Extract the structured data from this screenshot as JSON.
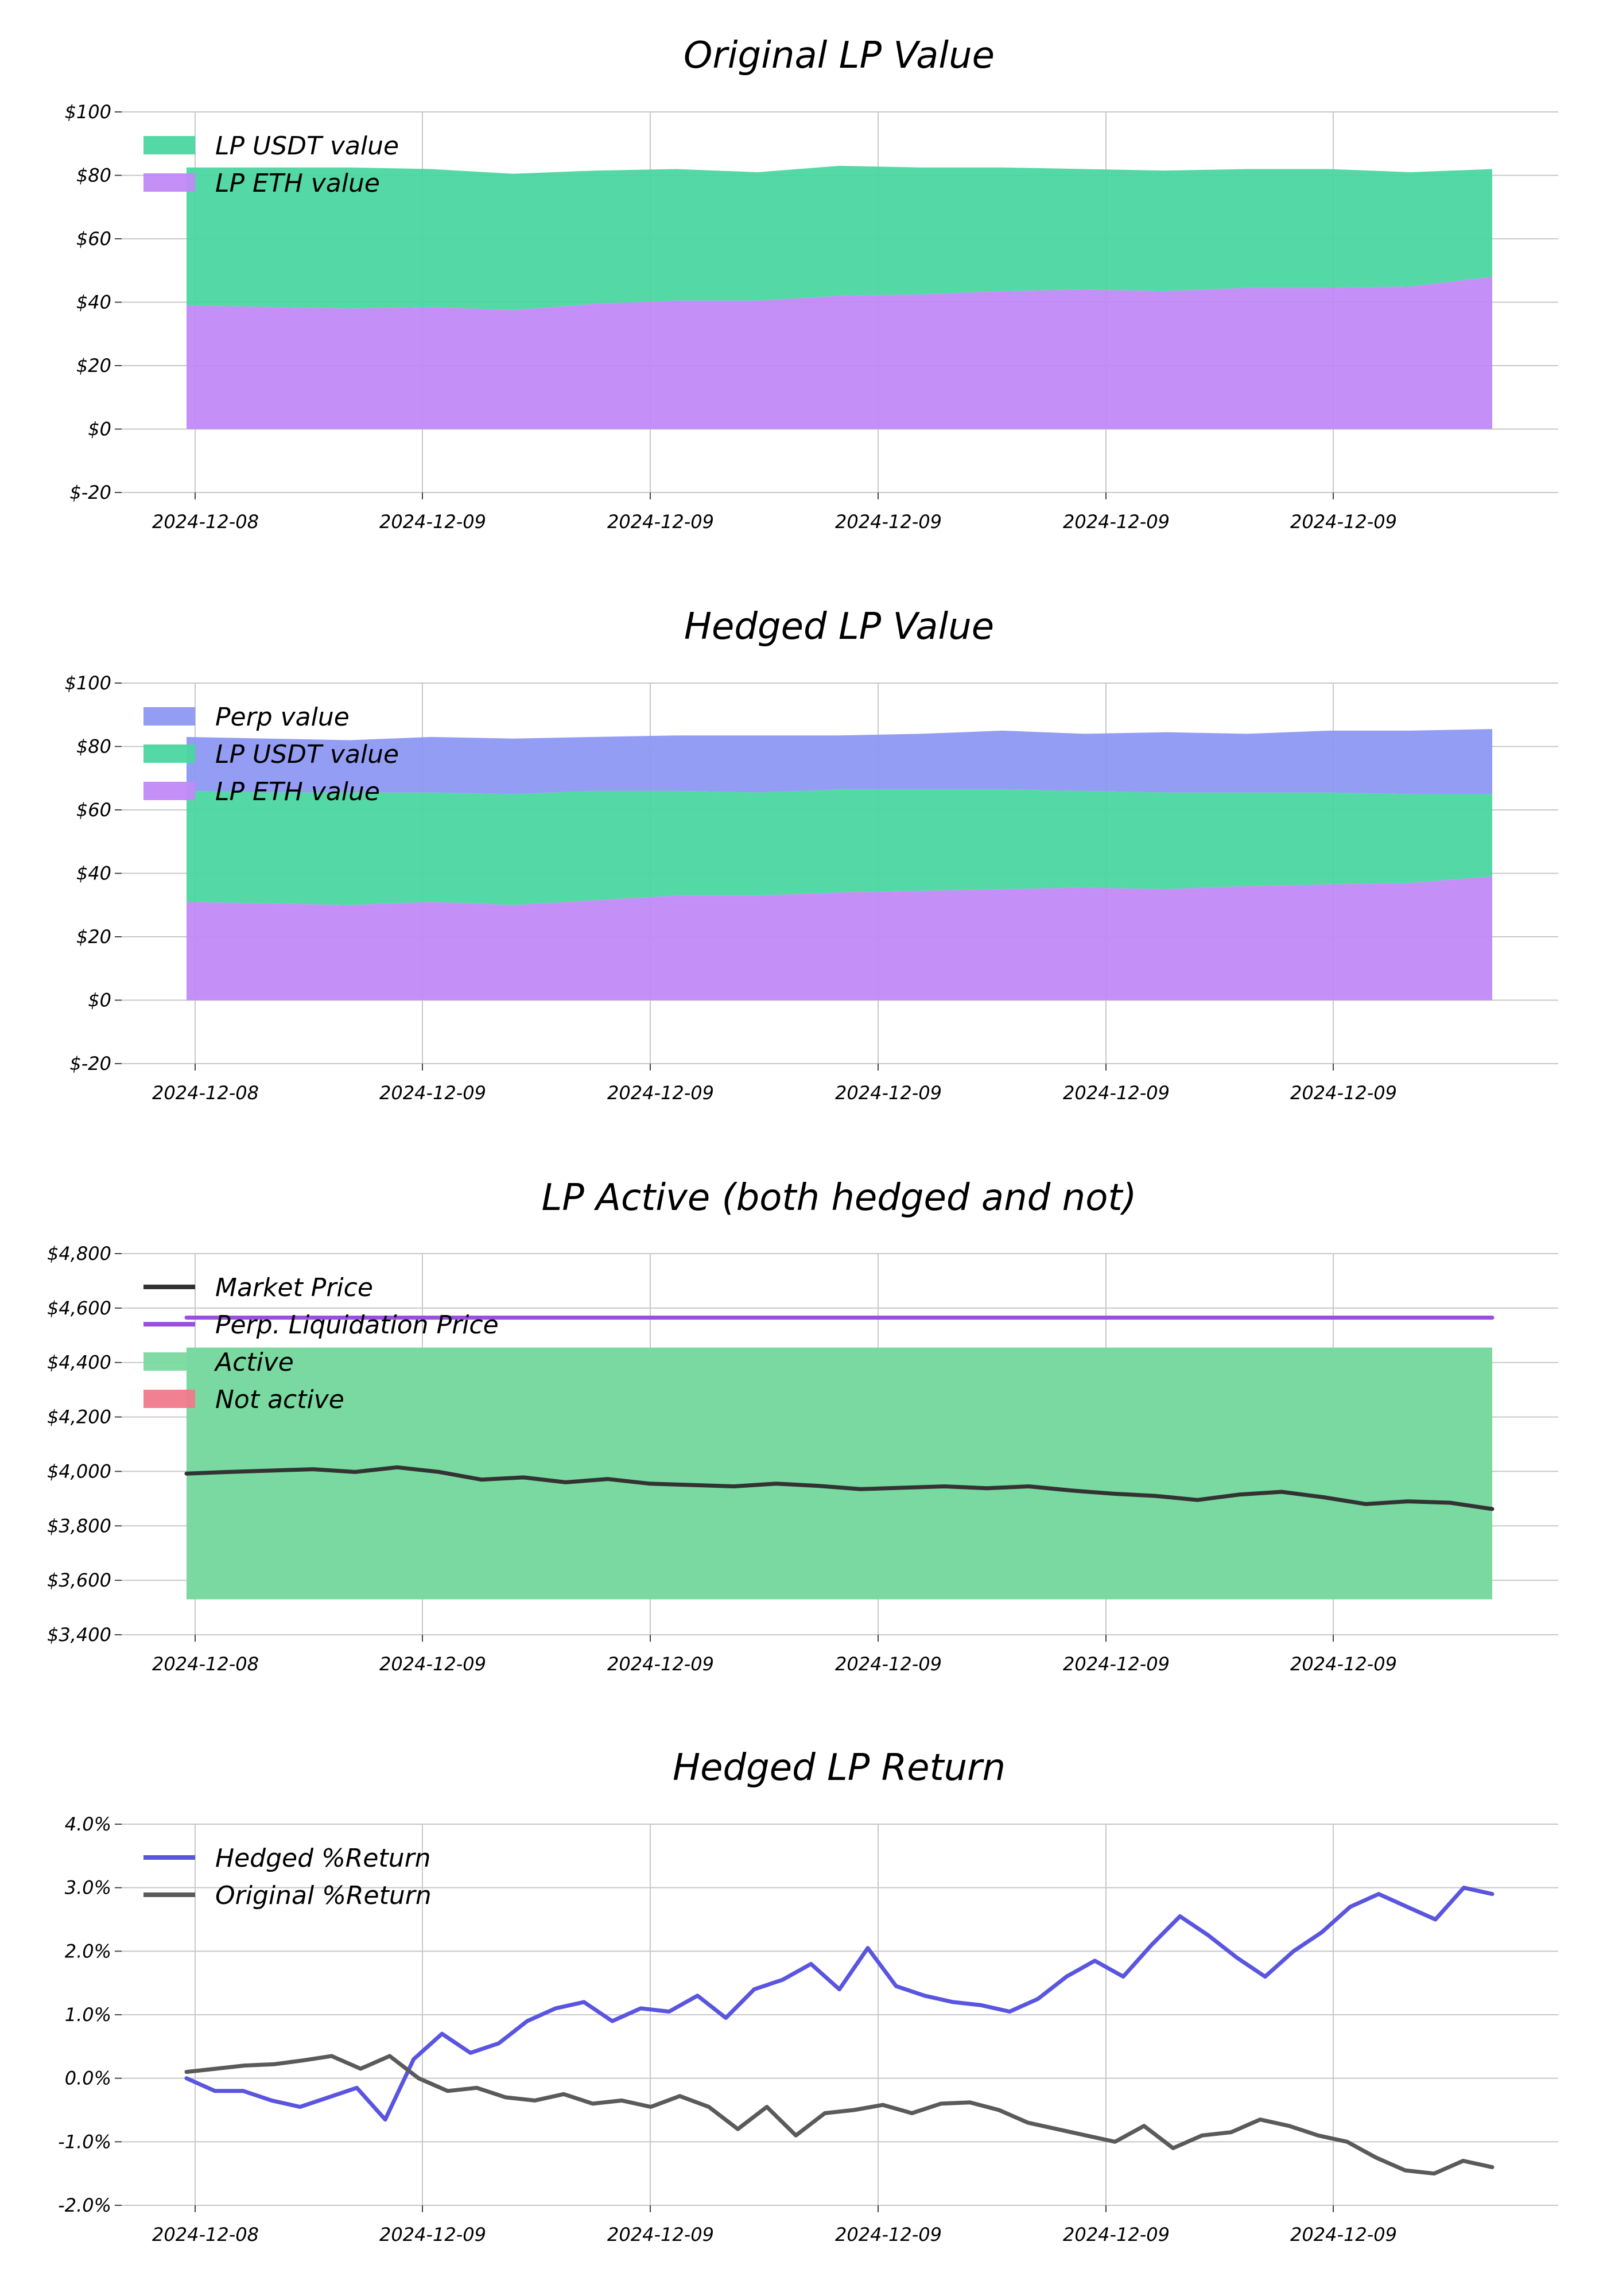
{
  "colors": {
    "lp_eth": "#c18af7",
    "lp_usdt": "#4bd6a0",
    "perp": "#8d98f3",
    "market_price": "#333333",
    "liquidation": "#9b4fe0",
    "active": "#7ad9a0",
    "not_active": "#f07a8a",
    "hedged_return": "#5a55e0",
    "original_return": "#5a5a5a",
    "grid": "#c8c8c8"
  },
  "chart_data": [
    {
      "type": "area",
      "title": "Original LP Value",
      "x_ticks": [
        "2024-12-08",
        "2024-12-09",
        "2024-12-09",
        "2024-12-09",
        "2024-12-09",
        "2024-12-09"
      ],
      "y_ticks": [
        "$-20",
        "$0",
        "$20",
        "$40",
        "$60",
        "$80",
        "$100"
      ],
      "ylim": [
        -20,
        100
      ],
      "legend": "top-left",
      "grid": true,
      "series": [
        {
          "name": "LP USDT value",
          "color_key": "lp_usdt",
          "values": [
            43.5,
            44,
            44.5,
            43.5,
            43,
            42,
            41.5,
            40.5,
            41,
            40,
            39,
            38,
            38,
            37.5,
            37.5,
            36,
            34
          ]
        },
        {
          "name": "LP ETH value",
          "color_key": "lp_eth",
          "values": [
            39,
            38.5,
            38,
            38.5,
            37.5,
            39.5,
            40.5,
            40.5,
            42,
            42.5,
            43.5,
            44,
            43.5,
            44.5,
            44.5,
            45,
            48
          ]
        }
      ]
    },
    {
      "type": "area",
      "title": "Hedged LP Value",
      "x_ticks": [
        "2024-12-08",
        "2024-12-09",
        "2024-12-09",
        "2024-12-09",
        "2024-12-09",
        "2024-12-09"
      ],
      "y_ticks": [
        "$-20",
        "$0",
        "$20",
        "$40",
        "$60",
        "$80",
        "$100"
      ],
      "ylim": [
        -20,
        100
      ],
      "legend": "top-left",
      "grid": true,
      "series": [
        {
          "name": "Perp value",
          "color_key": "perp",
          "values": [
            17,
            17,
            16.5,
            17.5,
            17.5,
            17,
            17.5,
            18,
            17,
            17.5,
            18.5,
            18,
            19,
            18.5,
            19.5,
            20,
            20.5
          ]
        },
        {
          "name": "LP USDT value",
          "color_key": "lp_usdt",
          "values": [
            35,
            35,
            35.5,
            34.5,
            35,
            34.5,
            33,
            32.5,
            32.5,
            32,
            31.5,
            30.5,
            30.5,
            29.5,
            29,
            28,
            26
          ]
        },
        {
          "name": "LP ETH value",
          "color_key": "lp_eth",
          "values": [
            31,
            30.5,
            30,
            31,
            30,
            31.5,
            33,
            33,
            34,
            34.5,
            35,
            35.5,
            35,
            36,
            36.5,
            37,
            39
          ]
        }
      ]
    },
    {
      "type": "line",
      "title": "LP Active (both hedged and not)",
      "x_ticks": [
        "2024-12-08",
        "2024-12-09",
        "2024-12-09",
        "2024-12-09",
        "2024-12-09",
        "2024-12-09"
      ],
      "y_ticks": [
        "$3,400",
        "$3,600",
        "$3,800",
        "$4,000",
        "$4,200",
        "$4,400",
        "$4,600",
        "$4,800"
      ],
      "ylim": [
        3400,
        4800
      ],
      "legend": "top-left",
      "grid": true,
      "active_band": [
        3530,
        4455
      ],
      "series": [
        {
          "name": "Market Price",
          "color_key": "market_price",
          "values": [
            3992,
            3998,
            4003,
            4008,
            3998,
            4015,
            3998,
            3970,
            3978,
            3960,
            3972,
            3955,
            3950,
            3945,
            3955,
            3947,
            3935,
            3940,
            3945,
            3938,
            3945,
            3930,
            3918,
            3910,
            3895,
            3915,
            3925,
            3905,
            3880,
            3890,
            3885,
            3862
          ]
        },
        {
          "name": "Perp. Liquidation Price",
          "color_key": "liquidation",
          "values": [
            4565,
            4565
          ]
        },
        {
          "name": "Active",
          "color_key": "active",
          "values": []
        },
        {
          "name": "Not active",
          "color_key": "not_active",
          "values": []
        }
      ]
    },
    {
      "type": "line",
      "title": "Hedged LP Return",
      "x_ticks": [
        "2024-12-08",
        "2024-12-09",
        "2024-12-09",
        "2024-12-09",
        "2024-12-09",
        "2024-12-09"
      ],
      "y_ticks": [
        "-2.0%",
        "-1.0%",
        "0.0%",
        "1.0%",
        "2.0%",
        "3.0%",
        "4.0%"
      ],
      "ylim": [
        -2,
        4
      ],
      "legend": "top-left",
      "grid": true,
      "series": [
        {
          "name": "Hedged %Return",
          "color_key": "hedged_return",
          "values": [
            0.0,
            -0.2,
            -0.2,
            -0.35,
            -0.45,
            -0.3,
            -0.15,
            -0.65,
            0.3,
            0.7,
            0.4,
            0.55,
            0.9,
            1.1,
            1.2,
            0.9,
            1.1,
            1.05,
            1.3,
            0.95,
            1.4,
            1.55,
            1.8,
            1.4,
            2.05,
            1.45,
            1.3,
            1.2,
            1.15,
            1.05,
            1.25,
            1.6,
            1.85,
            1.6,
            2.1,
            2.55,
            2.25,
            1.9,
            1.6,
            2.0,
            2.3,
            2.7,
            2.9,
            2.7,
            2.5,
            3.0,
            2.9
          ]
        },
        {
          "name": "Original %Return",
          "color_key": "original_return",
          "values": [
            0.1,
            0.15,
            0.2,
            0.22,
            0.28,
            0.35,
            0.15,
            0.35,
            0.0,
            -0.2,
            -0.15,
            -0.3,
            -0.35,
            -0.25,
            -0.4,
            -0.35,
            -0.45,
            -0.28,
            -0.45,
            -0.8,
            -0.45,
            -0.9,
            -0.55,
            -0.5,
            -0.42,
            -0.55,
            -0.4,
            -0.38,
            -0.5,
            -0.7,
            -0.8,
            -0.9,
            -1.0,
            -0.75,
            -1.1,
            -0.9,
            -0.85,
            -0.65,
            -0.75,
            -0.9,
            -1.0,
            -1.25,
            -1.45,
            -1.5,
            -1.3,
            -1.4
          ]
        }
      ]
    }
  ]
}
